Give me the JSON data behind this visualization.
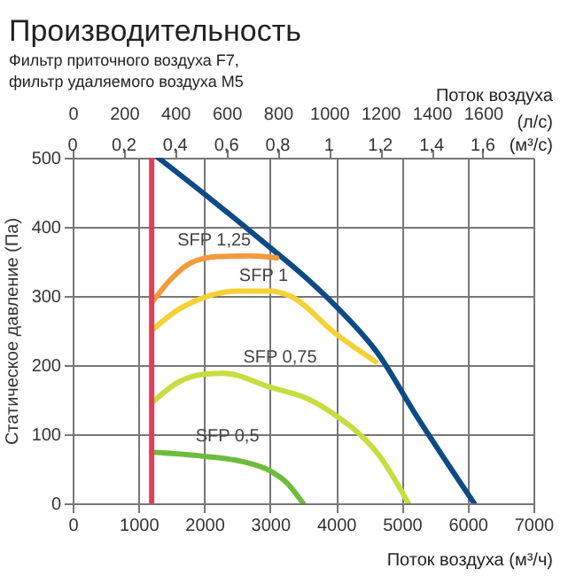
{
  "chart_data": {
    "type": "line",
    "title": "Производительность",
    "subtitle": "Фильтр приточного воздуха F7,\nфильтр удаляемого воздуха M5",
    "xlabel": "Поток воздуха (м³/ч)",
    "ylabel": "Статическое давление (Па)",
    "x2label": "Поток воздуха",
    "annotations": [
      "(л/с)",
      "(м³/с)",
      "0",
      "0,2",
      "0,4",
      "0,6",
      "0,8",
      "1",
      "1,2",
      "1,4",
      "1,6"
    ],
    "xlim": [
      0,
      7000
    ],
    "xticks": [
      0,
      1000,
      2000,
      3000,
      4000,
      5000,
      6000,
      7000
    ],
    "ylim": [
      0,
      500
    ],
    "yticks": [
      0,
      100,
      200,
      300,
      400,
      500
    ],
    "x2lim": [
      0,
      1797
    ],
    "x2ticks": [
      0,
      200,
      400,
      600,
      800,
      1000,
      1200,
      1400,
      1600
    ],
    "grid": true,
    "marker": "none",
    "line_style": "solid",
    "ref_lines": [
      {
        "axis": "x",
        "value": 1200,
        "label": null,
        "color": "#e23d5c"
      }
    ],
    "series": [
      {
        "color": "#0d4a86",
        "x": [
          1300,
          2100,
          3000,
          3500,
          4000,
          4650,
          5200,
          6100
        ],
        "values": [
          500,
          440,
          370,
          330,
          285,
          215,
          130,
          0
        ]
      },
      {
        "name": "SFP 1,25",
        "color": "#f29a3e",
        "x": [
          1200,
          1500,
          1800,
          2200,
          2700,
          3100
        ],
        "values": [
          290,
          325,
          348,
          357,
          358,
          355
        ]
      },
      {
        "name": "SFP 1",
        "color": "#f5d135",
        "x": [
          1200,
          1600,
          2000,
          2500,
          3000,
          3300,
          4000,
          4600
        ],
        "values": [
          250,
          280,
          298,
          307,
          307,
          300,
          245,
          205
        ]
      },
      {
        "name": "SFP 0,75",
        "color": "#c9dc40",
        "x": [
          1200,
          1600,
          2000,
          2300,
          3000,
          3600,
          4000,
          4300,
          4650,
          5100
        ],
        "values": [
          145,
          175,
          187,
          188,
          168,
          150,
          127,
          105,
          70,
          0
        ]
      },
      {
        "name": "SFP 0,5",
        "color": "#6cbd3c",
        "x": [
          1200,
          2000,
          2600,
          3000,
          3250,
          3500
        ],
        "values": [
          74,
          68,
          60,
          47,
          30,
          0
        ]
      }
    ]
  }
}
